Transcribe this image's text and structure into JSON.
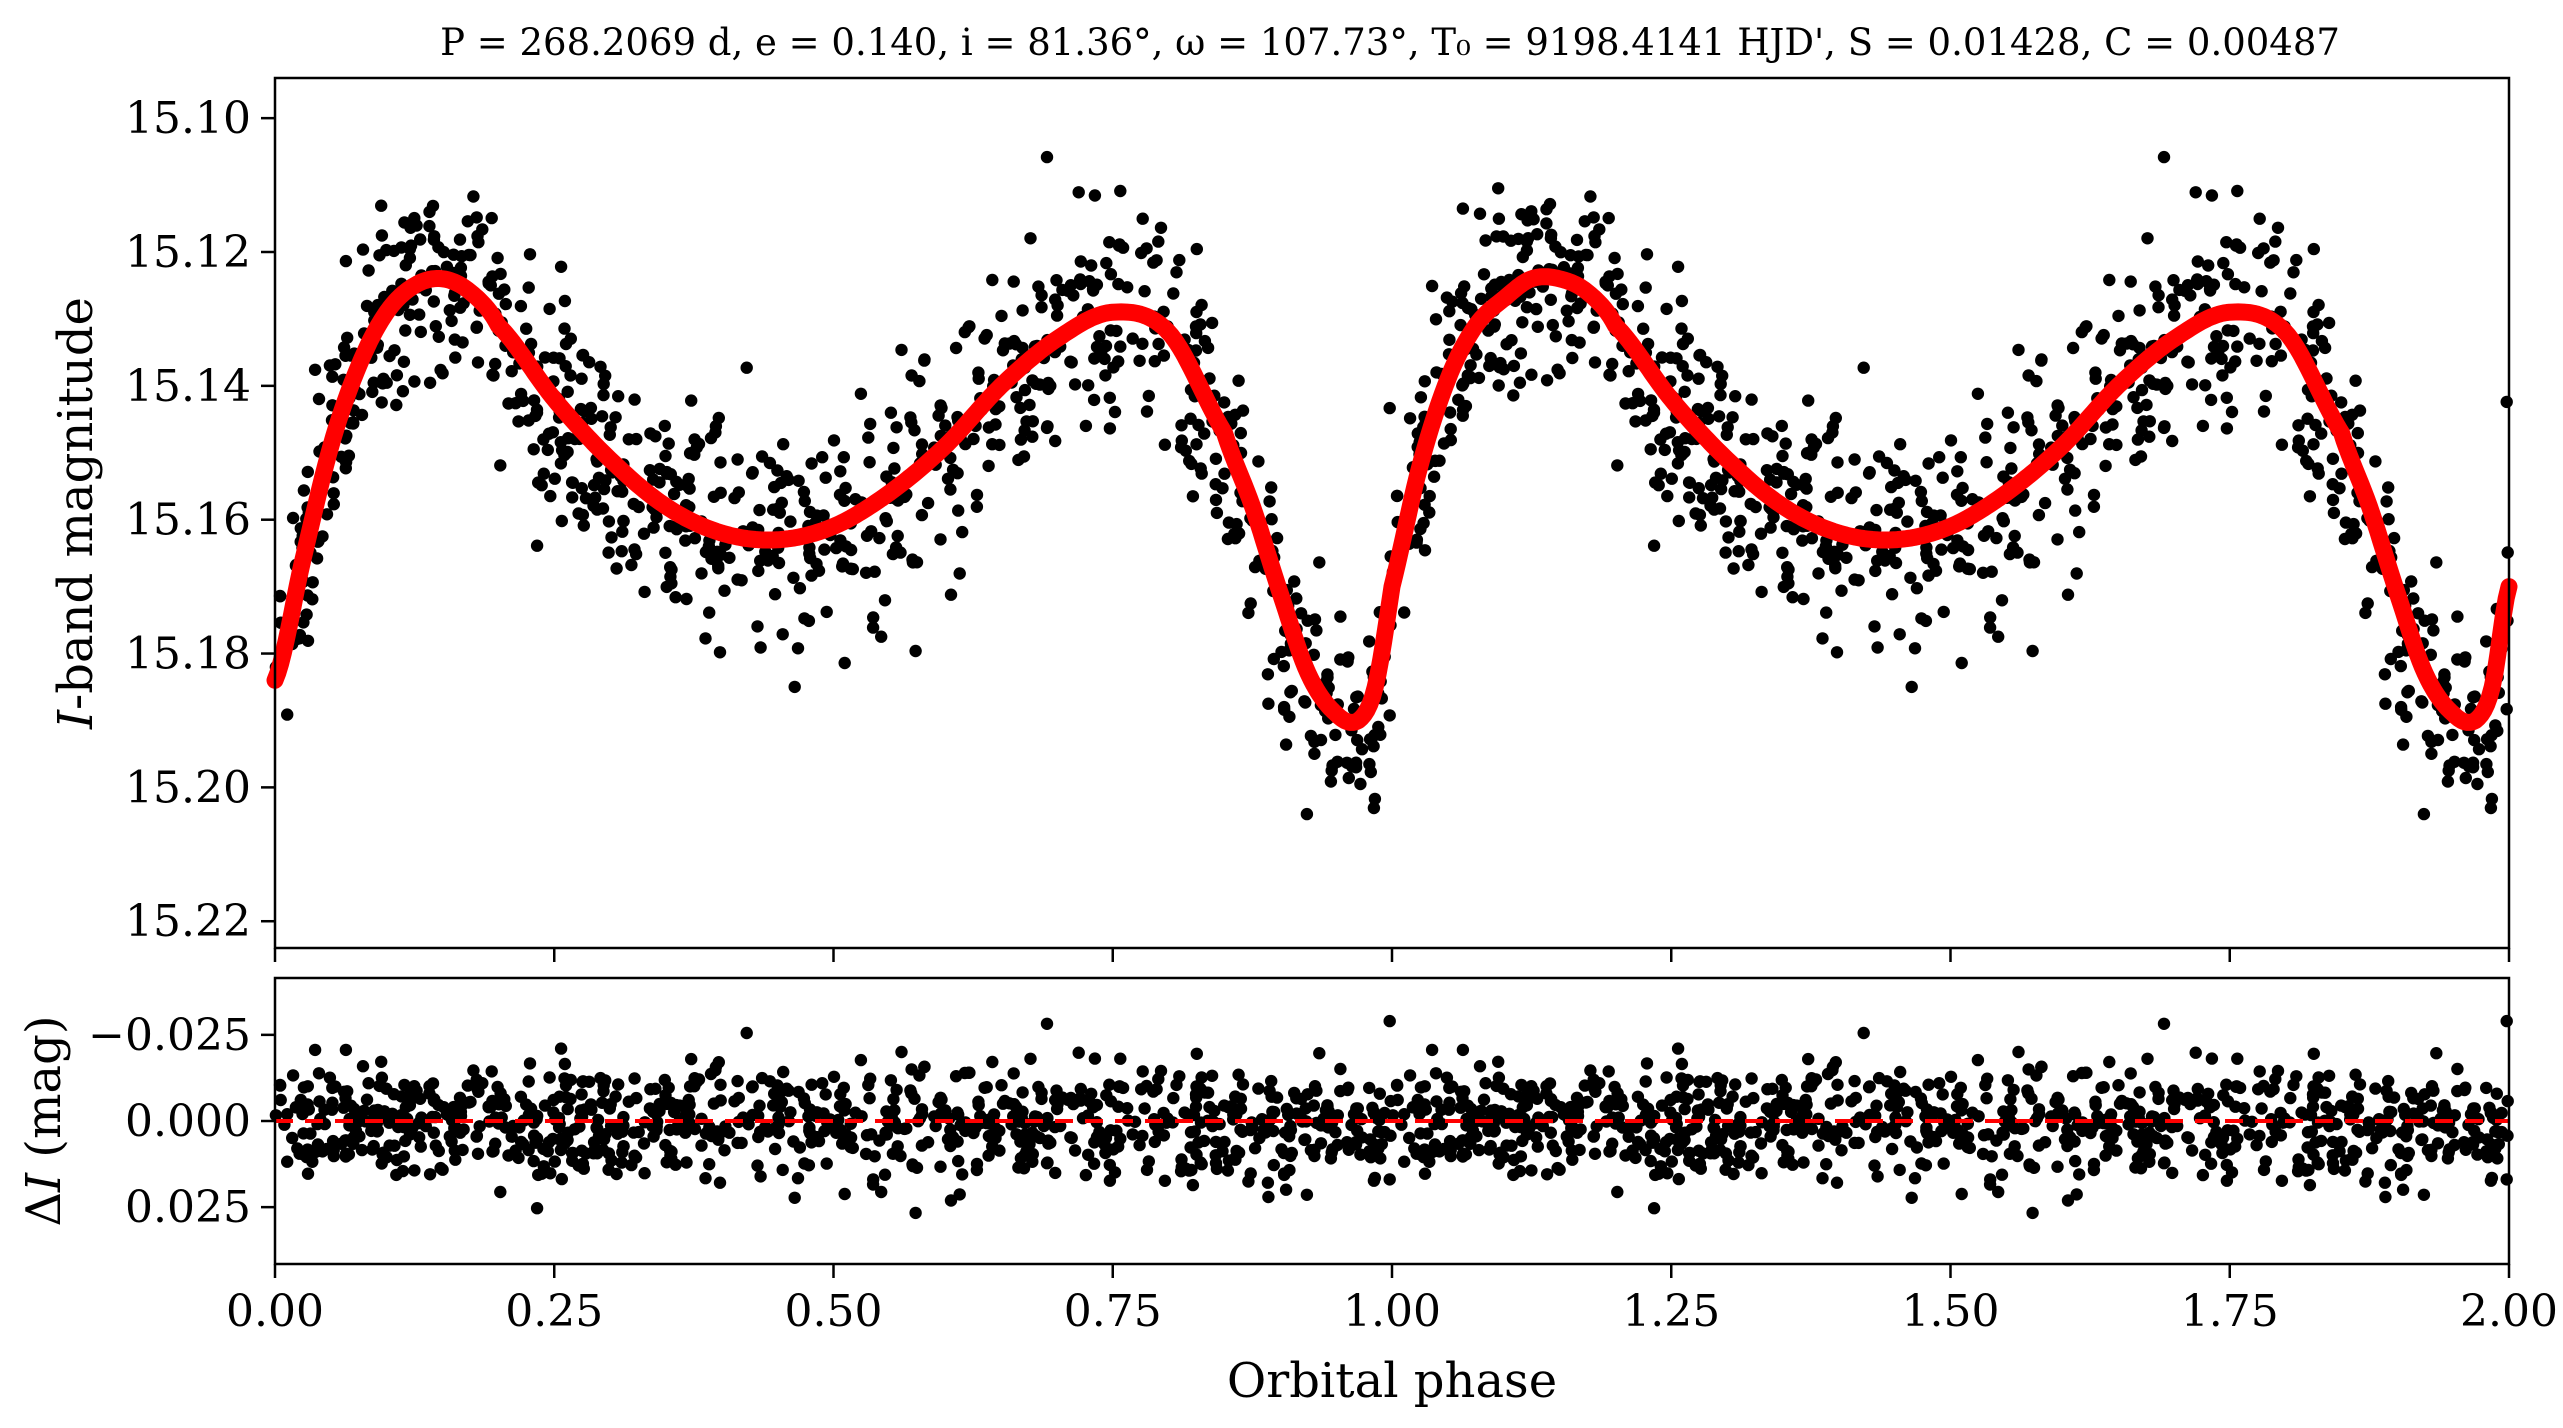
{
  "title": "P = 268.2069 d, e = 0.140, i = 81.36°, ω = 107.73°, T₀ = 9198.4141 HJD', S = 0.01428, C = 0.00487",
  "chart_data": [
    {
      "type": "scatter",
      "panel": "top",
      "xlabel": "",
      "ylabel": "I-band magnitude",
      "ylabel_italic_prefix": "I",
      "ylabel_rest": "-band magnitude",
      "xlim": [
        0.0,
        2.0
      ],
      "ylim": [
        15.224,
        15.094
      ],
      "y_inverted": true,
      "yticks": [
        "15.10",
        "15.12",
        "15.14",
        "15.16",
        "15.18",
        "15.20",
        "15.22"
      ],
      "ytick_values": [
        15.1,
        15.12,
        15.14,
        15.16,
        15.18,
        15.2,
        15.22
      ],
      "series": [
        {
          "kind": "points",
          "color": "#000000",
          "description_points_count": 1800
        },
        {
          "kind": "model-line",
          "color": "#ff0000",
          "x": [
            0.0,
            0.025,
            0.05,
            0.075,
            0.1,
            0.125,
            0.15,
            0.175,
            0.2,
            0.25,
            0.3,
            0.35,
            0.4,
            0.45,
            0.5,
            0.55,
            0.6,
            0.65,
            0.7,
            0.75,
            0.8,
            0.85,
            0.875,
            0.9,
            0.925,
            0.95,
            0.97,
            0.985,
            1.0,
            1.025,
            1.05,
            1.075,
            1.1,
            1.125,
            1.15,
            1.175,
            1.2,
            1.25,
            1.3,
            1.35,
            1.4,
            1.45,
            1.5,
            1.55,
            1.6,
            1.65,
            1.7,
            1.75,
            1.8,
            1.85,
            1.875,
            1.9,
            1.925,
            1.95,
            1.97,
            1.985,
            2.0
          ],
          "y": [
            15.184,
            15.166,
            15.149,
            15.137,
            15.129,
            15.125,
            15.124,
            15.126,
            15.131,
            15.142,
            15.151,
            15.158,
            15.162,
            15.163,
            15.161,
            15.156,
            15.149,
            15.14,
            15.133,
            15.129,
            15.132,
            15.147,
            15.158,
            15.171,
            15.183,
            15.189,
            15.19,
            15.185,
            15.17,
            15.152,
            15.139,
            15.131,
            15.127,
            15.124,
            15.124,
            15.126,
            15.131,
            15.142,
            15.151,
            15.158,
            15.162,
            15.163,
            15.161,
            15.156,
            15.149,
            15.14,
            15.133,
            15.129,
            15.132,
            15.147,
            15.158,
            15.171,
            15.183,
            15.189,
            15.19,
            15.185,
            15.17
          ]
        }
      ]
    },
    {
      "type": "scatter",
      "panel": "bottom",
      "xlabel": "Orbital phase",
      "ylabel": "ΔI (mag)",
      "ylabel_prefix": "Δ",
      "ylabel_italic": "I",
      "ylabel_rest": " (mag)",
      "xlim": [
        0.0,
        2.0
      ],
      "ylim": [
        0.0415,
        -0.0415
      ],
      "y_inverted": true,
      "xticks": [
        "0.00",
        "0.25",
        "0.50",
        "0.75",
        "1.00",
        "1.25",
        "1.50",
        "1.75",
        "2.00"
      ],
      "xtick_values": [
        0.0,
        0.25,
        0.5,
        0.75,
        1.0,
        1.25,
        1.5,
        1.75,
        2.0
      ],
      "yticks": [
        "−0.025",
        "0.000",
        "0.025"
      ],
      "ytick_values": [
        -0.025,
        0.0,
        0.025
      ],
      "series": [
        {
          "kind": "points",
          "color": "#000000"
        },
        {
          "kind": "zero-line",
          "color": "#ff0000",
          "style": "dashed",
          "y": 0.0
        }
      ]
    }
  ]
}
